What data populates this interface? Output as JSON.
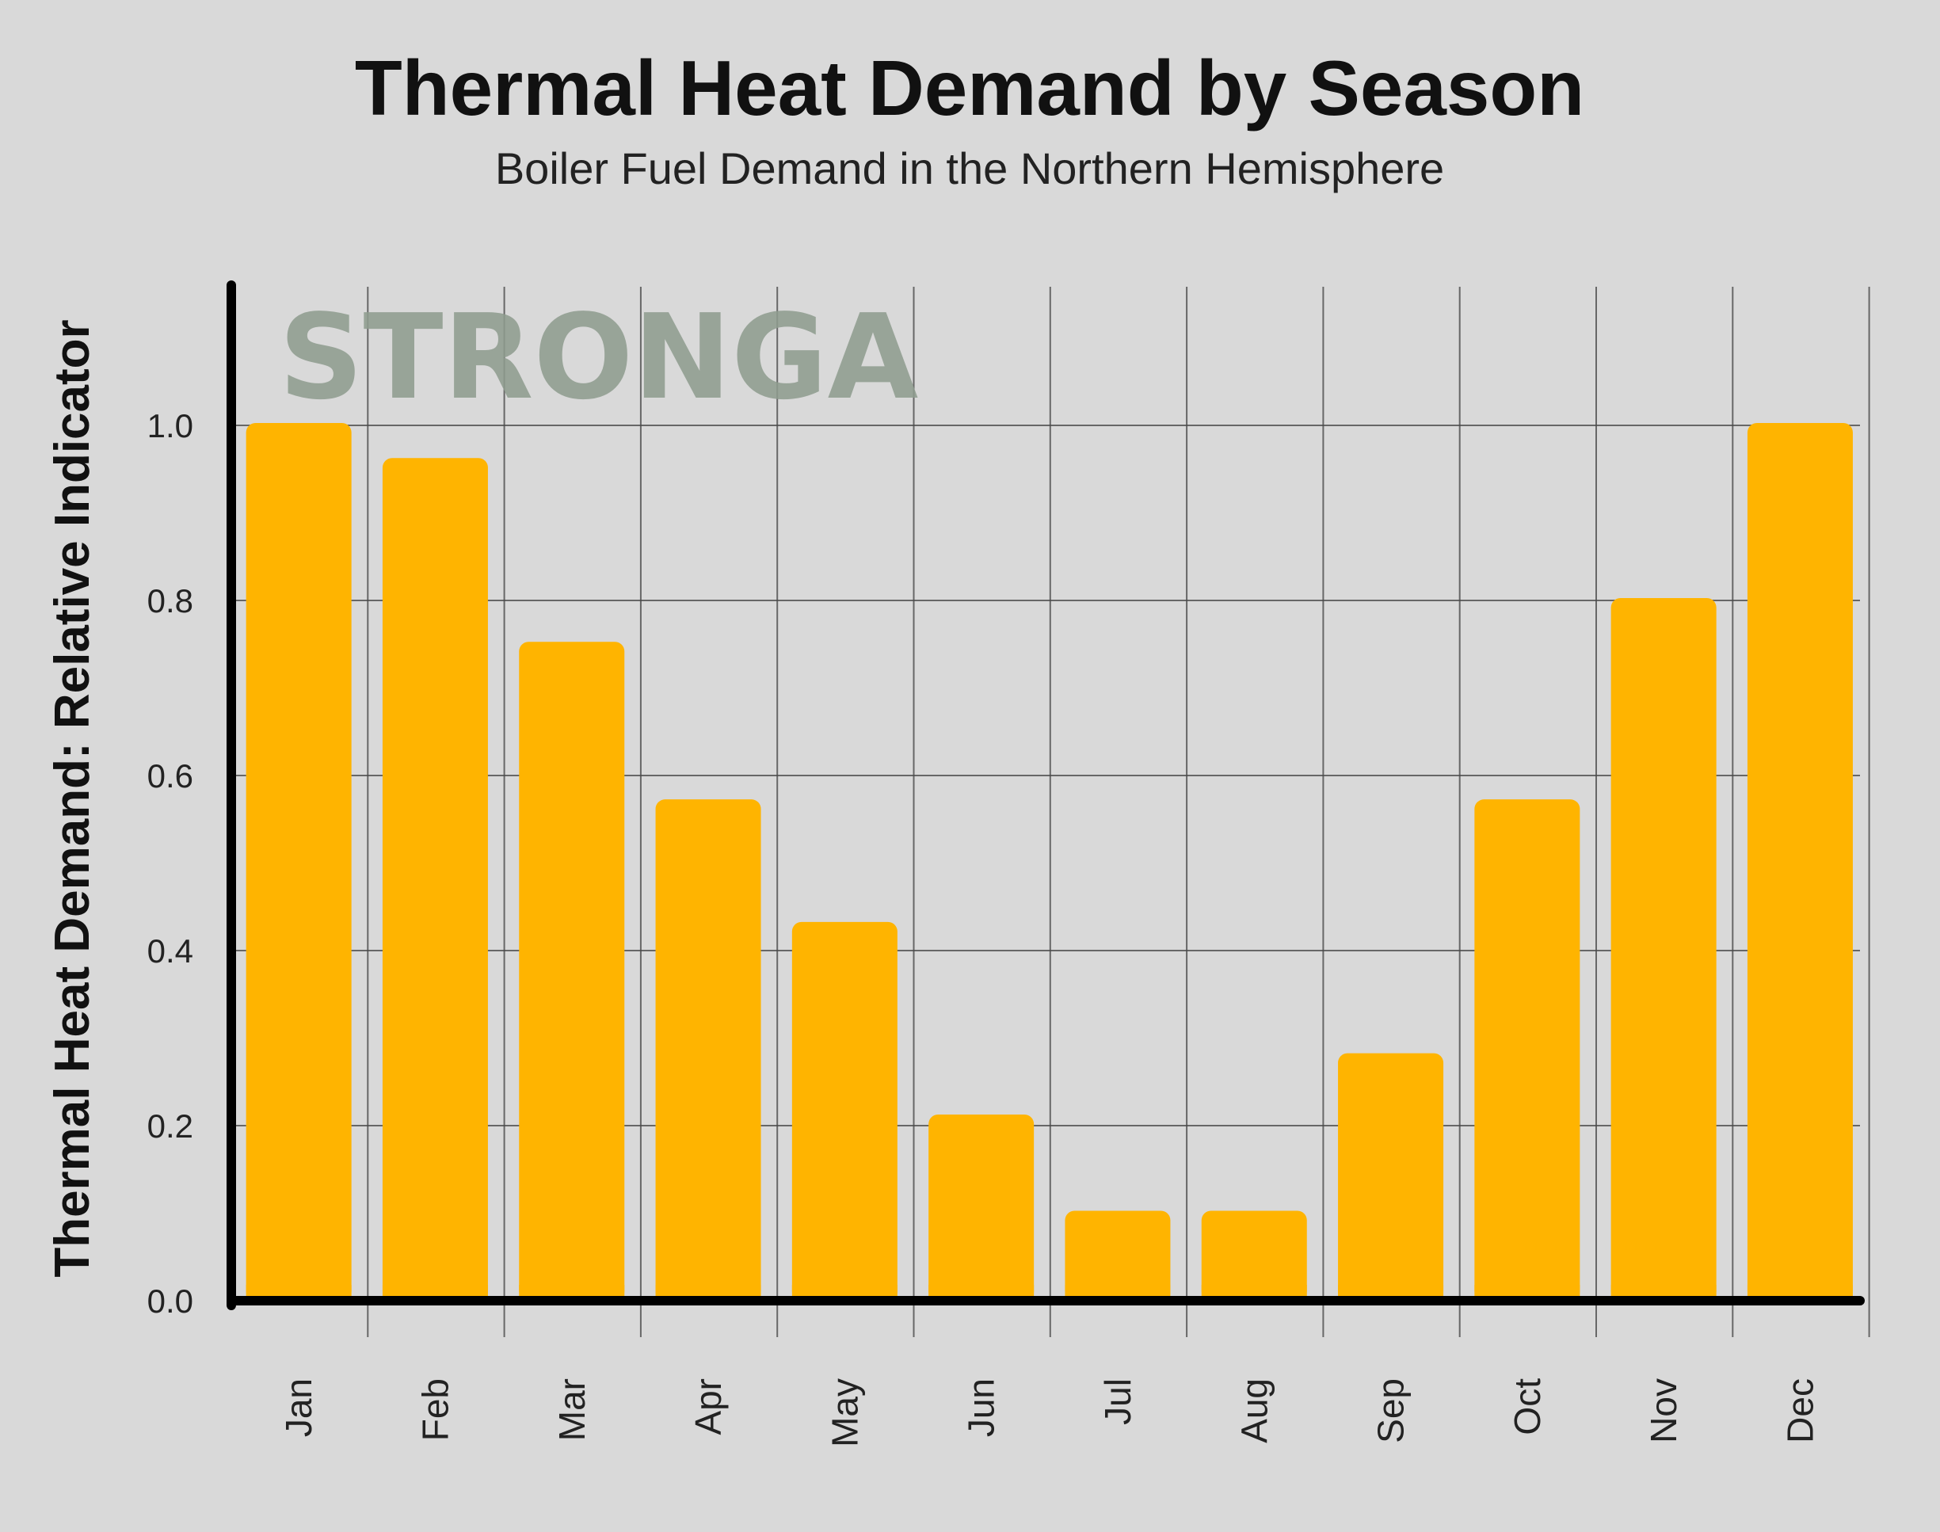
{
  "chart_data": {
    "type": "bar",
    "title": "Thermal Heat Demand by Season",
    "subtitle": "Boiler Fuel Demand in the Northern Hemisphere",
    "ylabel": "Thermal Heat Demand: Relative Indicator",
    "xlabel": "",
    "categories": [
      "Jan",
      "Feb",
      "Mar",
      "Apr",
      "May",
      "Jun",
      "Jul",
      "Aug",
      "Sep",
      "Oct",
      "Nov",
      "Dec"
    ],
    "values": [
      1.0,
      0.96,
      0.75,
      0.57,
      0.43,
      0.21,
      0.1,
      0.1,
      0.28,
      0.57,
      0.8,
      1.0
    ],
    "ylim": [
      0,
      1.0
    ],
    "yticks": [
      "0.0",
      "0.2",
      "0.4",
      "0.6",
      "0.8",
      "1.0"
    ],
    "grid": true,
    "legend": "none",
    "watermark": "STRONGA",
    "colors": {
      "background": "#d9d9d9",
      "bar": "#ffb400",
      "axis": "#000000",
      "grid": "#4a4a4a",
      "watermark": "#8e9c8e"
    }
  }
}
